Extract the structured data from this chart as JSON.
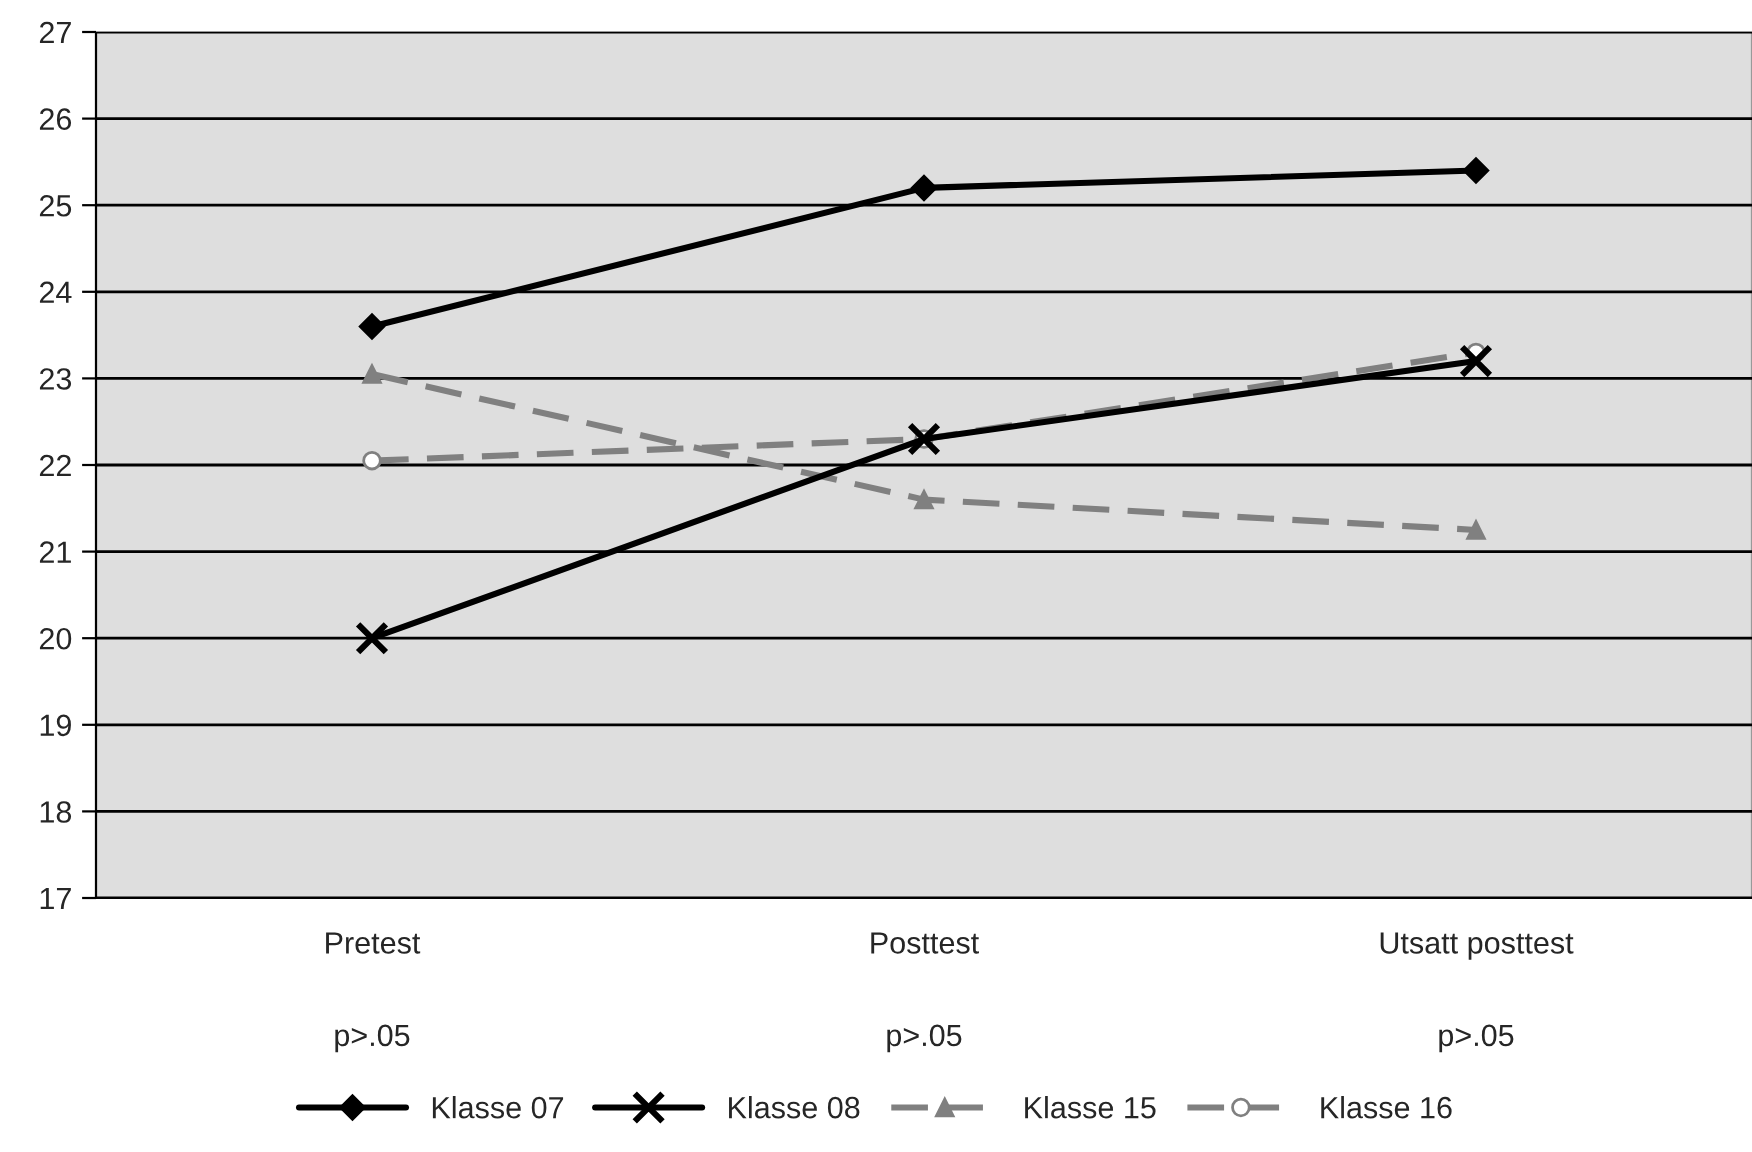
{
  "chart_data": {
    "type": "line",
    "categories": [
      "Pretest",
      "Posttest",
      "Utsatt posttest"
    ],
    "series": [
      {
        "name": "Klasse 07",
        "color": "#000000",
        "marker": "diamond",
        "line_style": "solid",
        "values": [
          23.6,
          25.2,
          25.4
        ]
      },
      {
        "name": "Klasse 08",
        "color": "#000000",
        "marker": "cross",
        "line_style": "solid",
        "values": [
          20.0,
          22.3,
          23.2
        ]
      },
      {
        "name": "Klasse 15",
        "color": "#808080",
        "marker": "triangle",
        "line_style": "dashed",
        "values": [
          23.05,
          21.6,
          21.25
        ]
      },
      {
        "name": "Klasse 16",
        "color": "#808080",
        "marker": "circle",
        "line_style": "dashed",
        "values": [
          22.05,
          22.3,
          23.3
        ]
      }
    ],
    "annotations": [
      "p>.05",
      "p>.05",
      "p>.05"
    ],
    "ylim": [
      17,
      27
    ],
    "yticks": [
      17,
      18,
      19,
      20,
      21,
      22,
      23,
      24,
      25,
      26,
      27
    ],
    "grid": "y",
    "legend": "bottom"
  }
}
